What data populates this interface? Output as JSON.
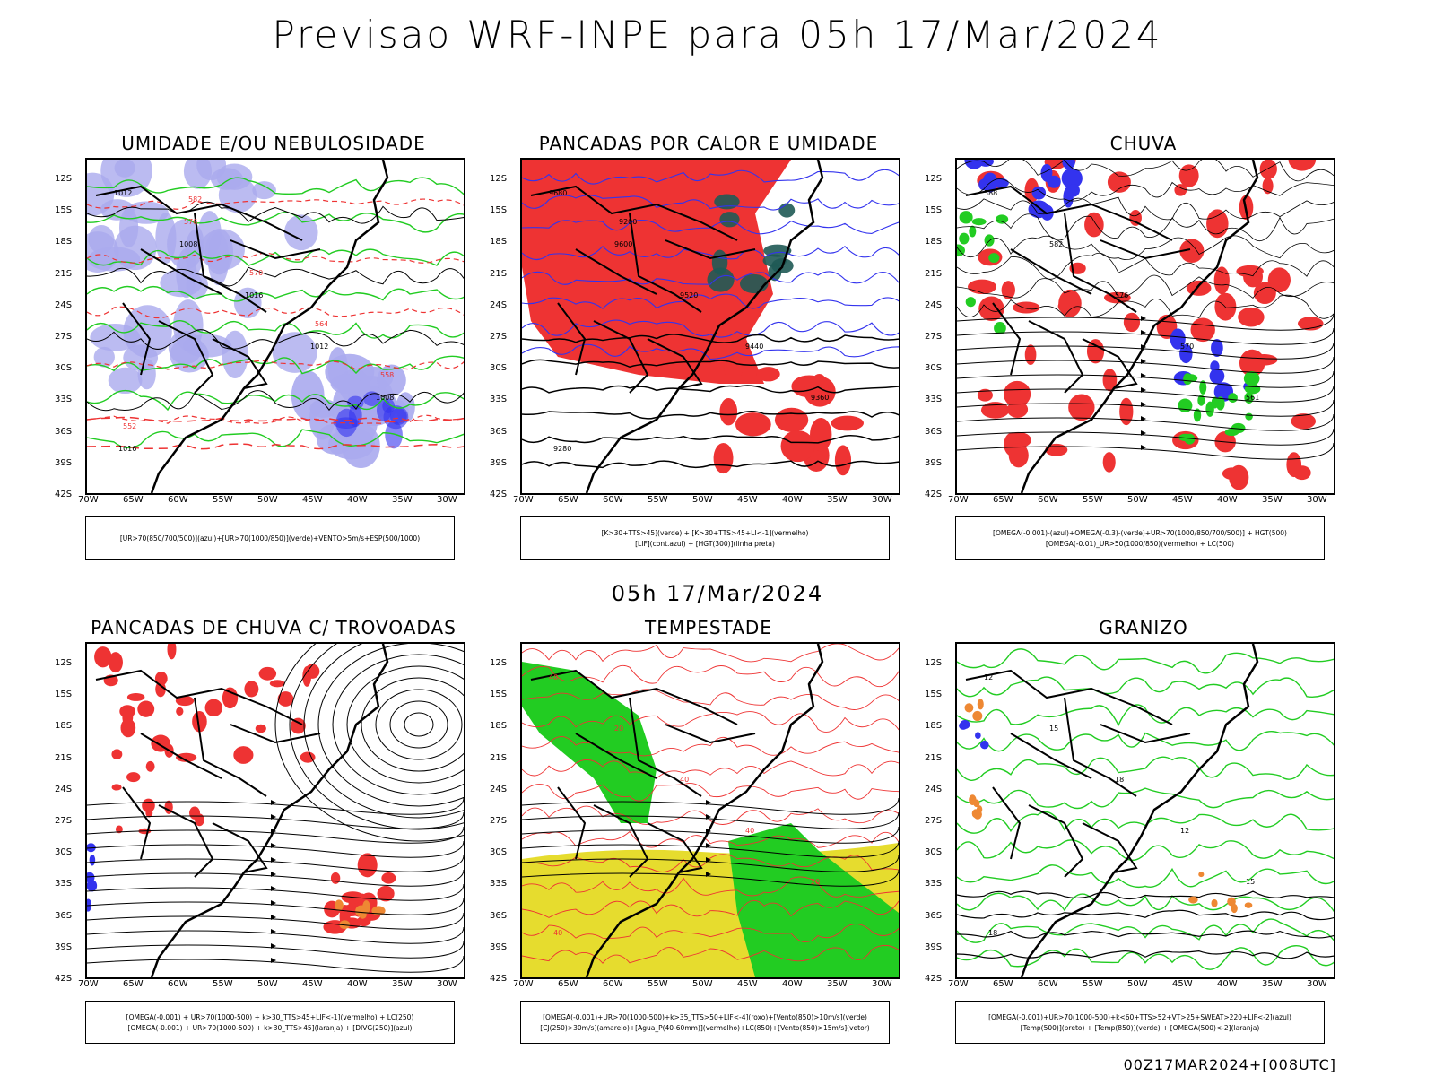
{
  "title": "Previsao WRF-INPE  para 05h 17/Mar/2024",
  "subtitle": "05h 17/Mar/2024",
  "footer": "00Z17MAR2024+[008UTC]",
  "lat_labels": [
    "12S",
    "15S",
    "18S",
    "21S",
    "24S",
    "27S",
    "30S",
    "33S",
    "36S",
    "39S",
    "42S"
  ],
  "lon_labels": [
    "70W",
    "65W",
    "60W",
    "55W",
    "50W",
    "45W",
    "40W",
    "35W",
    "30W"
  ],
  "colors": {
    "red": "#ee3333",
    "blue": "#3333ee",
    "green": "#22cc22",
    "lavender": "#aaaaee",
    "yellow": "#e6dc2e",
    "darkgreen": "#1f5a55",
    "orange": "#ee8833"
  },
  "panels": [
    {
      "title": "UMIDADE E/OU NEBULOSIDADE",
      "legend": [
        "[UR>70(850/700/500)](azul)+[UR>70(1000/850)](verde)+VENTO>5m/s+ESP(500/1000)"
      ],
      "contour_labels": [
        "1012",
        "1008",
        "1016",
        "1012",
        "1008",
        "1016",
        "576",
        "570",
        "564",
        "558",
        "552",
        "582"
      ]
    },
    {
      "title": "PANCADAS POR CALOR E UMIDADE",
      "legend": [
        "[K>30+TTS>45](verde) + [K>30+TTS>45+LI<-1](vermelho)",
        "[LIF](cont.azul) + [HGT(300)](linha preta)"
      ],
      "contour_labels": [
        "9680",
        "9600",
        "9520",
        "9440",
        "9360",
        "9280",
        "9200"
      ]
    },
    {
      "title": "CHUVA",
      "legend": [
        "[OMEGA(-0.001)-(azul)+OMEGA(-0.3)-(verde)+UR>70(1000/850/700/500)] + HGT(500)",
        "[OMEGA(-0.01)_UR>50(1000/850)(vermelho) + LC(500)"
      ],
      "contour_labels": [
        "588",
        "582",
        "576",
        "570",
        "561"
      ]
    },
    {
      "title": "PANCADAS DE CHUVA C/ TROVOADAS",
      "legend": [
        "[OMEGA(-0.001) + UR>70(1000-500) + k>30_TTS>45+LIF<-1](vermelho) + LC(250)",
        "[OMEGA(-0.001) + UR>70(1000-500) + k>30_TTS>45](laranja) + [DIVG(250)](azul)"
      ],
      "contour_labels": []
    },
    {
      "title": "TEMPESTADE",
      "legend": [
        "[OMEGA(-0.001)+UR>70(1000-500)+k>35_TTS>50+LIF<-4](roxo)+[Vento(850)>10m/s](verde)",
        "[CJ(250)>30m/s](amarelo)+[Agua_P(40-60mm)](vermelho)+LC(850)+[Vento(850)>15m/s](vetor)"
      ],
      "contour_labels": [
        "40",
        "20",
        "40",
        "40",
        "20",
        "40"
      ]
    },
    {
      "title": "GRANIZO",
      "legend": [
        "[OMEGA(-0.001)+UR>70(1000-500)+k<60+TTS>52+VT>25+SWEAT>220+LIF<-2](azul)",
        "[Temp(500)](preto) + [Temp(850)](verde) + [OMEGA(500)<-2](laranja)"
      ],
      "contour_labels": [
        "12",
        "15",
        "18",
        "12",
        "15",
        "18"
      ]
    }
  ]
}
